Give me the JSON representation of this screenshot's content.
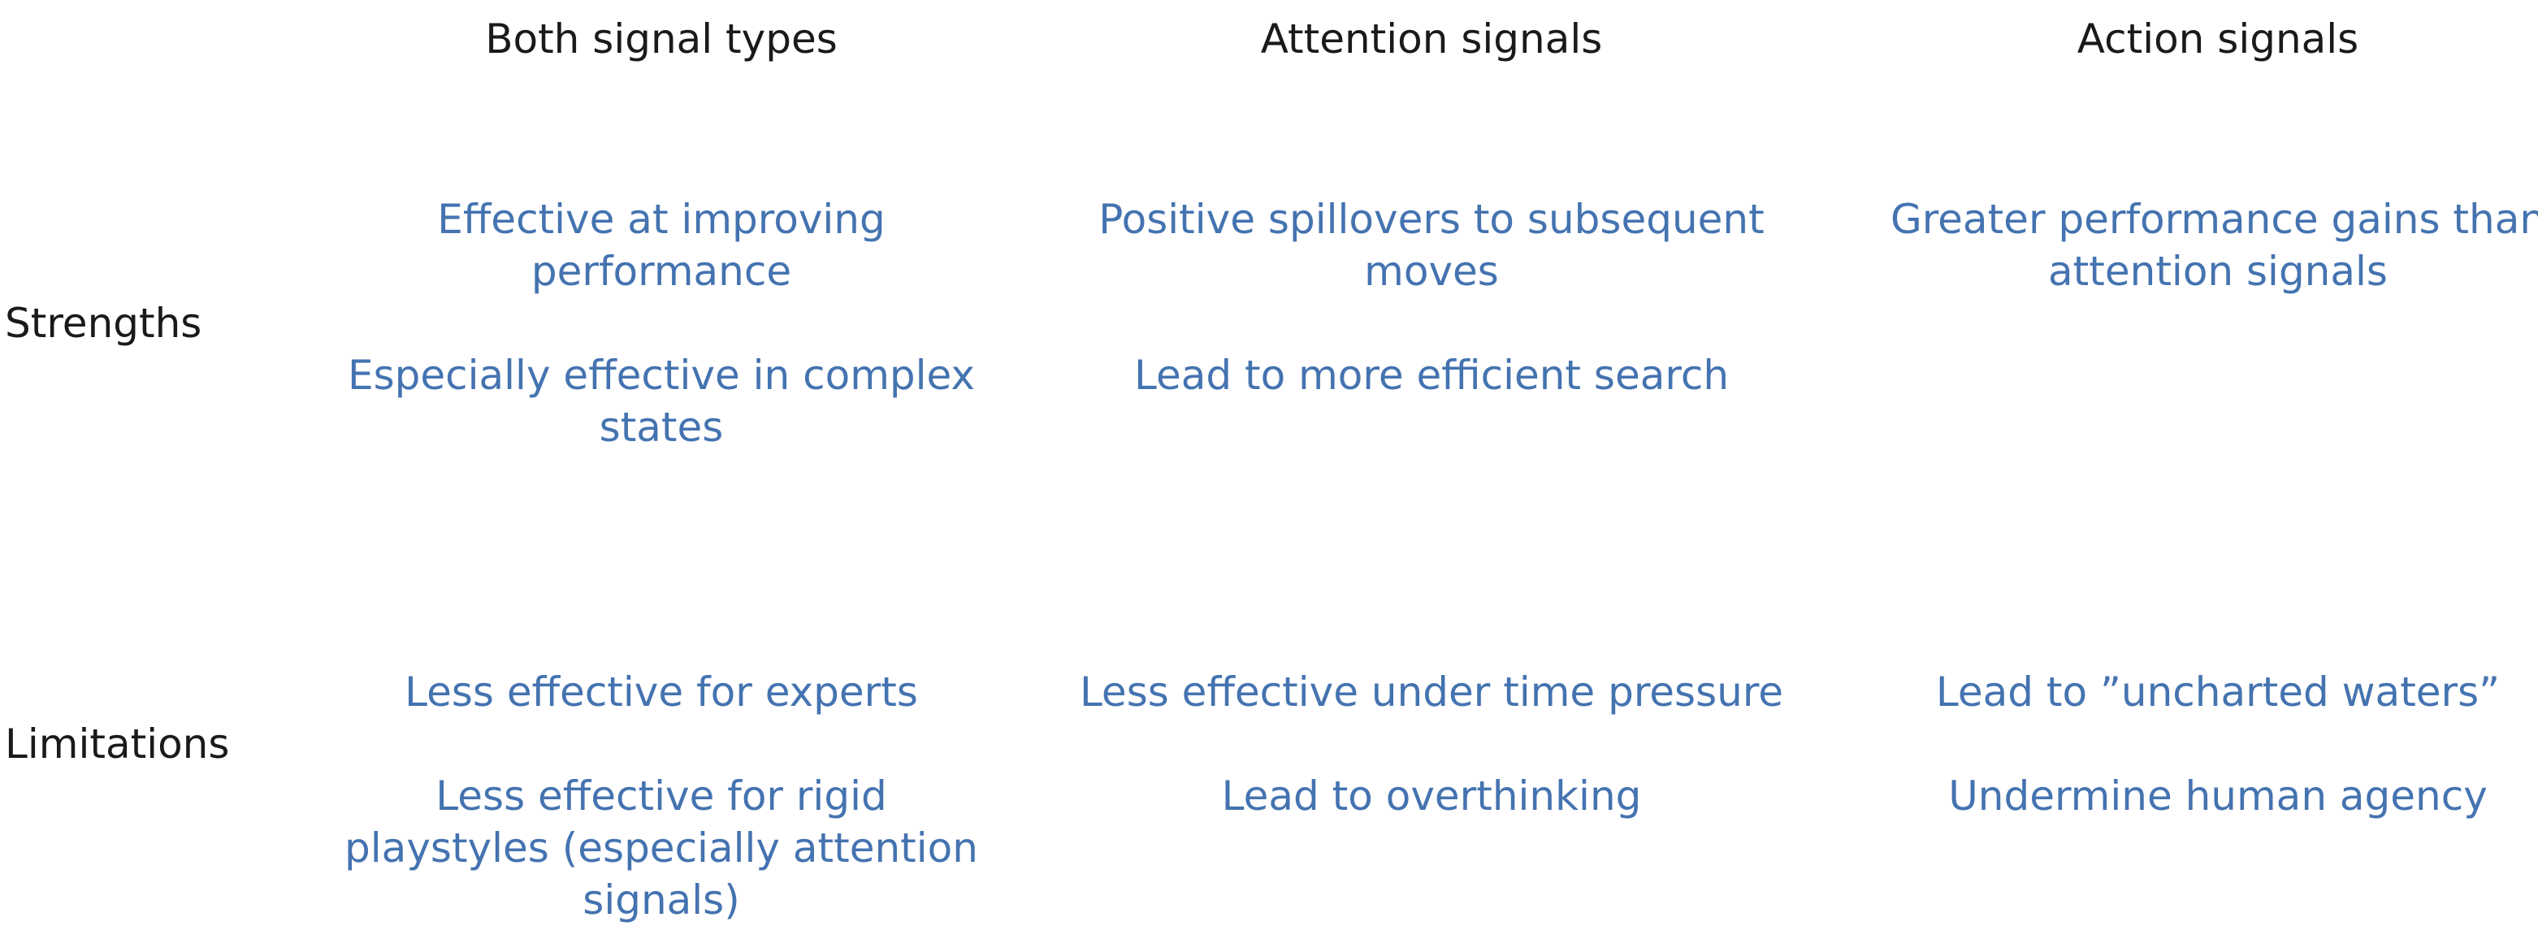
{
  "columns": [
    {
      "header": "Both signal types"
    },
    {
      "header": "Attention signals"
    },
    {
      "header": "Action signals"
    }
  ],
  "rows": [
    {
      "label": "Strengths",
      "cells": [
        [
          "Effective at improving performance",
          "Especially effective in complex states"
        ],
        [
          "Positive spillovers to subsequent moves",
          "Lead to more efficient search"
        ],
        [
          "Greater performance gains than attention signals"
        ]
      ]
    },
    {
      "label": "Limitations",
      "cells": [
        [
          "Less effective for experts",
          "Less effective for rigid playstyles (especially attention signals)"
        ],
        [
          "Less effective under time pressure",
          "Lead to overthinking"
        ],
        [
          "Lead to ”uncharted waters”",
          "Undermine human agency"
        ]
      ]
    }
  ],
  "colors": {
    "header_text": "#1a1a1a",
    "item_text": "#4473b0"
  }
}
